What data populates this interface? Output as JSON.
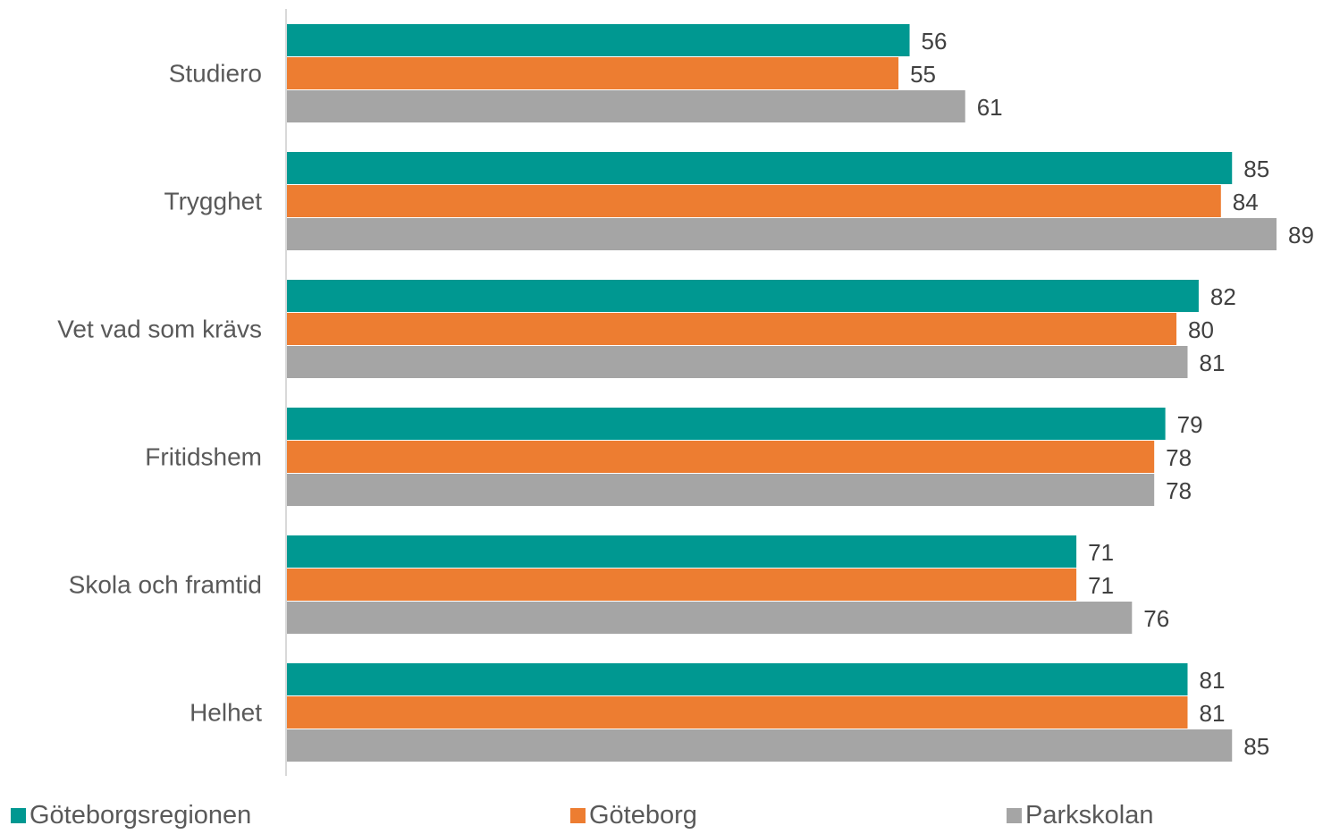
{
  "chart_data": {
    "type": "bar",
    "orientation": "horizontal",
    "categories": [
      "Studiero",
      "Trygghet",
      "Vet vad som krävs",
      "Fritidshem",
      "Skola och framtid",
      "Helhet"
    ],
    "series": [
      {
        "name": "Göteborgsregionen",
        "color": "#009891",
        "values": [
          56,
          85,
          82,
          79,
          71,
          81
        ]
      },
      {
        "name": "Göteborg",
        "color": "#ED7D31",
        "values": [
          55,
          84,
          80,
          78,
          71,
          81
        ]
      },
      {
        "name": "Parkskolan",
        "color": "#A5A5A5",
        "values": [
          61,
          89,
          81,
          78,
          76,
          85
        ]
      }
    ],
    "xlim": [
      0,
      89
    ],
    "grid": false,
    "data_labels": true,
    "legend": "bottom"
  }
}
